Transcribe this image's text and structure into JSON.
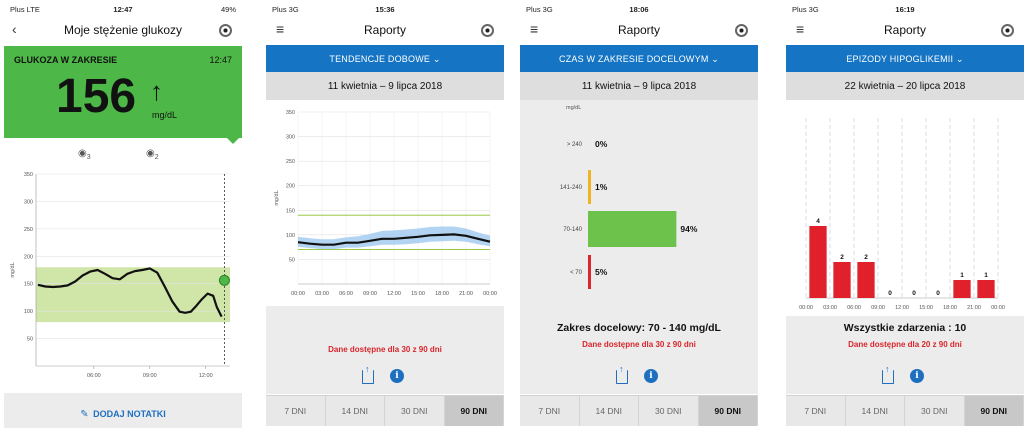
{
  "screens": [
    {
      "status": {
        "carrier": "Plus LTE",
        "time": "12:47",
        "right": "49%"
      },
      "title": "Moje stężenie glukozy",
      "banner": {
        "label": "GLUKOZA W ZAKRESIE",
        "time": "12:47",
        "value": "156",
        "unit": "mg/dL",
        "trend": "↑",
        "color": "#4db848"
      },
      "notes": [
        "3",
        "2"
      ],
      "chart_data": {
        "type": "line",
        "ylabel": "mg/dL",
        "yticks": [
          "350",
          "300",
          "250",
          "200",
          "150",
          "100",
          "50"
        ],
        "xticks": [
          "06:00",
          "09:00",
          "12:00"
        ],
        "ylim": [
          0,
          350
        ],
        "target_range": [
          80,
          180
        ],
        "series": [
          {
            "x": [
              3.0,
              3.4,
              3.8,
              4.2,
              4.6,
              5.0,
              5.4,
              5.8,
              6.2,
              6.6,
              7.0,
              7.4,
              7.8,
              8.2,
              8.6,
              9.0,
              9.4,
              9.8,
              10.2,
              10.6,
              10.9,
              11.2,
              11.5,
              11.8,
              12.1,
              12.4,
              12.6,
              12.85
            ],
            "y": [
              148,
              145,
              144,
              145,
              147,
              154,
              165,
              172,
              175,
              168,
              160,
              158,
              168,
              173,
              175,
              178,
              170,
              145,
              118,
              99,
              97,
              99,
              110,
              122,
              132,
              128,
              107,
              90
            ]
          }
        ],
        "current": {
          "x": 13.0,
          "y": 156
        }
      },
      "add_note": "DODAJ NOTATKI"
    },
    {
      "status": {
        "carrier": "Plus 3G",
        "time": "15:36",
        "right": ""
      },
      "title": "Raporty",
      "dropdown": "TENDENCJE DOBOWE",
      "dates": "11 kwietnia – 9 lipca 2018",
      "chart_data": {
        "type": "line",
        "ylabel": "mg/dL",
        "yticks": [
          "350",
          "300",
          "250",
          "200",
          "150",
          "100",
          "50"
        ],
        "xticks": [
          "00:00",
          "03:00",
          "06:00",
          "09:00",
          "12:00",
          "15:00",
          "18:00",
          "21:00",
          "00:00"
        ],
        "ylim": [
          0,
          350
        ],
        "target_range": [
          70,
          140
        ],
        "x": [
          0,
          1.5,
          3,
          4.5,
          6,
          7.5,
          9,
          10.5,
          12,
          13.5,
          15,
          16.5,
          18,
          19.5,
          21,
          22.5,
          24
        ],
        "series": [
          {
            "name": "median",
            "values": [
              85,
              82,
              80,
              80,
              84,
              84,
              88,
              92,
              92,
              94,
              96,
              99,
              100,
              101,
              98,
              92,
              86
            ]
          },
          {
            "name": "p25",
            "values": [
              76,
              73,
              71,
              71,
              74,
              74,
              77,
              80,
              80,
              81,
              83,
              86,
              87,
              88,
              86,
              81,
              77
            ]
          },
          {
            "name": "p75",
            "values": [
              96,
              93,
              91,
              91,
              95,
              97,
              102,
              108,
              109,
              111,
              113,
              116,
              117,
              117,
              113,
              105,
              98
            ]
          }
        ]
      },
      "message": "Dane dostępne dla 30 z 90 dni",
      "tabs": [
        "7 DNI",
        "14 DNI",
        "30 DNI",
        "90 DNI"
      ]
    },
    {
      "status": {
        "carrier": "Plus 3G",
        "time": "18:06",
        "right": ""
      },
      "title": "Raporty",
      "dropdown": "CZAS W ZAKRESIE DOCELOWYM",
      "dates": "11 kwietnia – 9 lipca 2018",
      "chart_data": {
        "type": "bar",
        "unit": "mg/dL",
        "categories": [
          "> 240",
          "141-240",
          "70-140",
          "< 70"
        ],
        "values": [
          0,
          1,
          94,
          5
        ],
        "labels": [
          "0%",
          "1%",
          "94%",
          "5%"
        ],
        "colors": [
          "#f0b323",
          "#f0b323",
          "#6cc24a",
          "#d9252b"
        ]
      },
      "summary": "Zakres docelowy: 70 - 140 mg/dL",
      "message": "Dane dostępne dla 30 z 90 dni",
      "tabs": [
        "7 DNI",
        "14 DNI",
        "30 DNI",
        "90 DNI"
      ]
    },
    {
      "status": {
        "carrier": "Plus 3G",
        "time": "16:19",
        "right": ""
      },
      "title": "Raporty",
      "dropdown": "EPIZODY HIPOGLIKEMII",
      "dates": "22 kwietnia – 20 lipca 2018",
      "chart_data": {
        "type": "bar",
        "categories": [
          "00:00",
          "03:00",
          "06:00",
          "09:00",
          "12:00",
          "15:00",
          "18:00",
          "21:00"
        ],
        "xticks": [
          "00:00",
          "03:00",
          "06:00",
          "09:00",
          "12:00",
          "15:00",
          "18:00",
          "21:00",
          "00:00"
        ],
        "values": [
          4,
          2,
          2,
          0,
          0,
          0,
          1,
          1
        ],
        "color": "#e0212b"
      },
      "summary": "Wszystkie zdarzenia : 10",
      "message": "Dane dostępne dla 20 z 90 dni",
      "tabs": [
        "7 DNI",
        "14 DNI",
        "30 DNI",
        "90 DNI"
      ]
    }
  ]
}
